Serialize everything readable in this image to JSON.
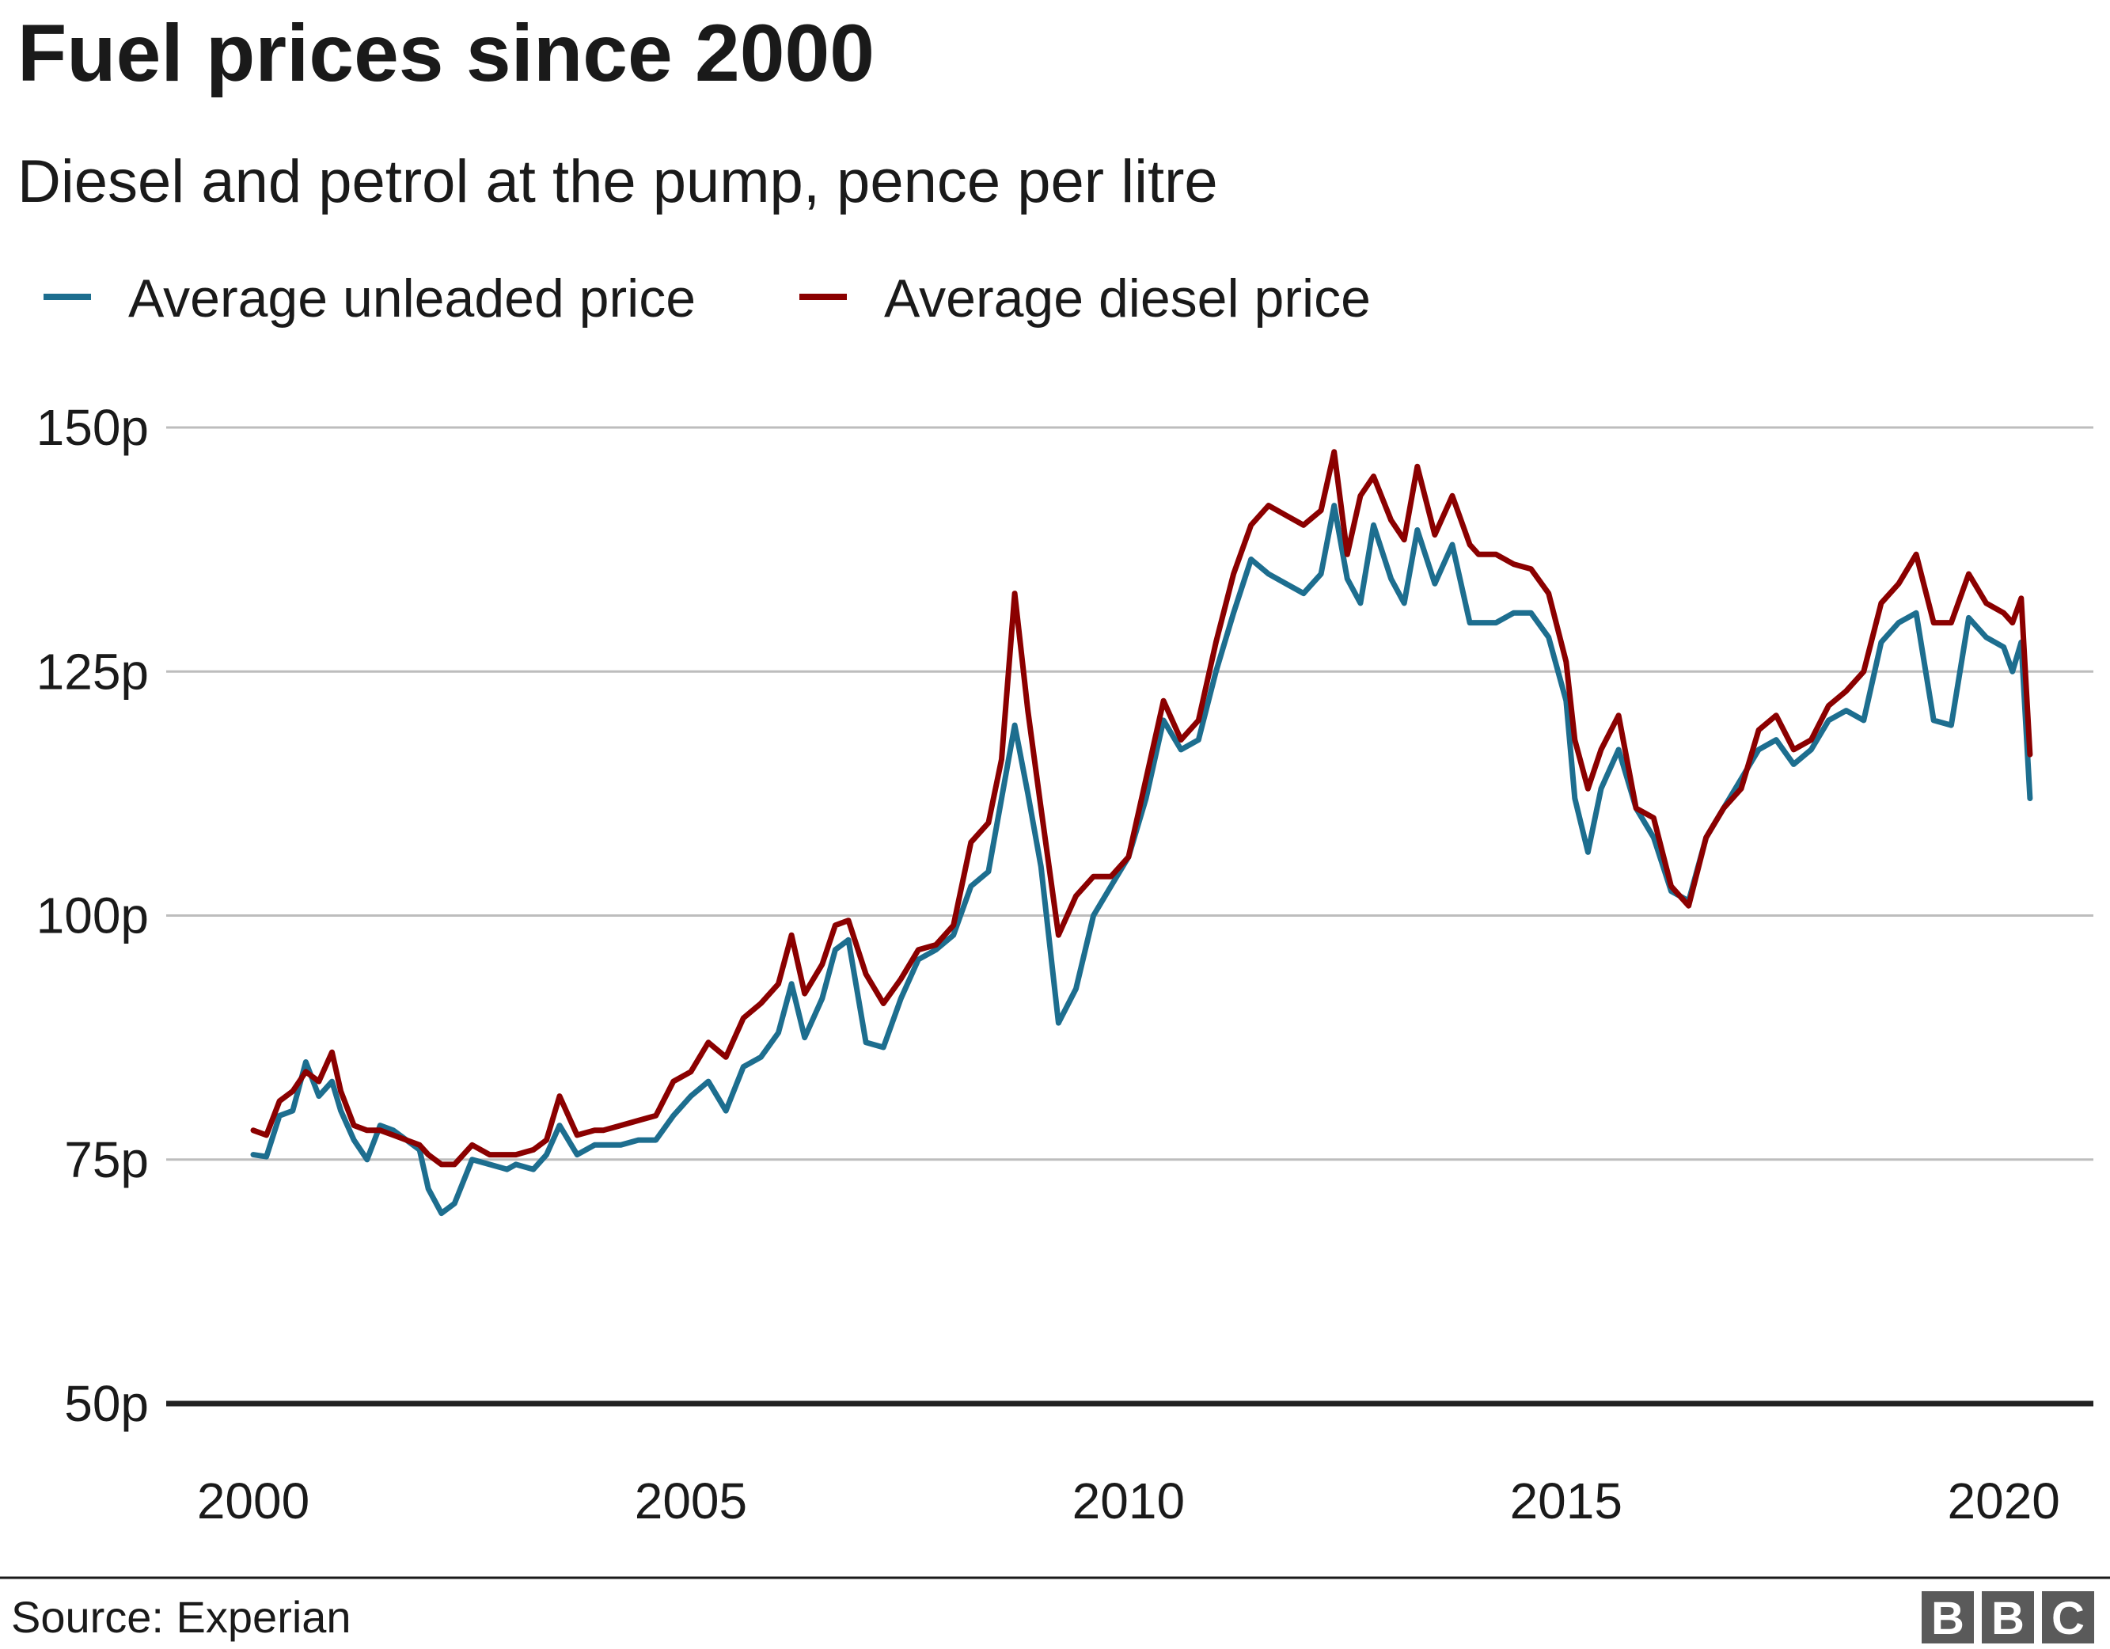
{
  "title": "Fuel prices since 2000",
  "subtitle": "Diesel and petrol at the pump, pence per litre",
  "source": "Source: Experian",
  "logo": {
    "letters": [
      "B",
      "B",
      "C"
    ],
    "color": "#5a5a5a"
  },
  "colors": {
    "unleaded": "#1d6e8f",
    "diesel": "#8b0000",
    "grid": "#bdbdbd",
    "baseline": "#222222"
  },
  "chart_data": {
    "type": "line",
    "title": "Fuel prices since 2000",
    "subtitle": "Diesel and petrol at the pump, pence per litre",
    "xlim": [
      2000,
      2020.5
    ],
    "ylim": [
      50,
      150
    ],
    "x_ticks": [
      2000,
      2005,
      2010,
      2015,
      2020
    ],
    "x_tick_labels": [
      "2000",
      "2005",
      "2010",
      "2015",
      "2020"
    ],
    "y_ticks": [
      50,
      75,
      100,
      125,
      150
    ],
    "y_tick_labels": [
      "50p",
      "75p",
      "100p",
      "125p",
      "150p"
    ],
    "grid": true,
    "legend_position": "top-left",
    "series": [
      {
        "name": "Average unleaded price",
        "color": "#1d6e8f",
        "x": [
          2000.0,
          2000.15,
          2000.3,
          2000.45,
          2000.6,
          2000.75,
          2000.9,
          2001.0,
          2001.15,
          2001.3,
          2001.45,
          2001.6,
          2001.75,
          2001.9,
          2002.0,
          2002.15,
          2002.3,
          2002.5,
          2002.7,
          2002.9,
          2003.0,
          2003.2,
          2003.35,
          2003.5,
          2003.7,
          2003.9,
          2004.0,
          2004.2,
          2004.4,
          2004.6,
          2004.8,
          2005.0,
          2005.2,
          2005.4,
          2005.6,
          2005.8,
          2006.0,
          2006.15,
          2006.3,
          2006.5,
          2006.65,
          2006.8,
          2007.0,
          2007.2,
          2007.4,
          2007.6,
          2007.8,
          2008.0,
          2008.2,
          2008.4,
          2008.55,
          2008.7,
          2008.85,
          2009.0,
          2009.2,
          2009.4,
          2009.6,
          2009.8,
          2010.0,
          2010.2,
          2010.4,
          2010.6,
          2010.8,
          2011.0,
          2011.2,
          2011.4,
          2011.6,
          2011.8,
          2012.0,
          2012.2,
          2012.35,
          2012.5,
          2012.65,
          2012.8,
          2013.0,
          2013.15,
          2013.3,
          2013.5,
          2013.7,
          2013.9,
          2014.0,
          2014.2,
          2014.4,
          2014.6,
          2014.8,
          2015.0,
          2015.1,
          2015.25,
          2015.4,
          2015.6,
          2015.8,
          2016.0,
          2016.2,
          2016.4,
          2016.6,
          2016.8,
          2017.0,
          2017.2,
          2017.4,
          2017.6,
          2017.8,
          2018.0,
          2018.2,
          2018.4,
          2018.6,
          2018.8,
          2019.0,
          2019.2,
          2019.4,
          2019.6,
          2019.8,
          2020.0,
          2020.1,
          2020.2,
          2020.3
        ],
        "values": [
          75.5,
          75.3,
          79.5,
          80.0,
          85.0,
          81.5,
          83.0,
          80.0,
          77.0,
          75.0,
          78.5,
          78.0,
          77.0,
          76.0,
          72.0,
          69.5,
          70.5,
          75.0,
          74.5,
          74.0,
          74.5,
          74.0,
          75.5,
          78.5,
          75.5,
          76.5,
          76.5,
          76.5,
          77.0,
          77.0,
          79.5,
          81.5,
          83.0,
          80.0,
          84.5,
          85.5,
          88.0,
          93.0,
          87.5,
          91.5,
          96.5,
          97.5,
          87.0,
          86.5,
          91.5,
          95.5,
          96.5,
          98.0,
          103.0,
          104.5,
          112.0,
          119.5,
          112.5,
          105.0,
          89.0,
          92.5,
          100.0,
          103.0,
          106.0,
          112.0,
          120.0,
          117.0,
          118.0,
          125.0,
          131.0,
          136.5,
          135.0,
          134.0,
          133.0,
          135.0,
          142.0,
          134.5,
          132.0,
          140.0,
          134.5,
          132.0,
          139.5,
          134.0,
          138.0,
          130.0,
          130.0,
          130.0,
          131.0,
          131.0,
          128.5,
          122.0,
          112.0,
          106.5,
          113.0,
          117.0,
          111.0,
          108.0,
          102.5,
          101.5,
          108.0,
          111.0,
          114.0,
          117.0,
          118.0,
          115.5,
          117.0,
          120.0,
          121.0,
          120.0,
          128.0,
          130.0,
          131.0,
          120.0,
          119.5,
          130.5,
          128.5,
          127.5,
          125.0,
          128.0,
          112.0
        ]
      },
      {
        "name": "Average diesel price",
        "color": "#8b0000",
        "x": [
          2000.0,
          2000.15,
          2000.3,
          2000.45,
          2000.6,
          2000.75,
          2000.9,
          2001.0,
          2001.15,
          2001.3,
          2001.45,
          2001.6,
          2001.75,
          2001.9,
          2002.0,
          2002.15,
          2002.3,
          2002.5,
          2002.7,
          2002.9,
          2003.0,
          2003.2,
          2003.35,
          2003.5,
          2003.7,
          2003.9,
          2004.0,
          2004.2,
          2004.4,
          2004.6,
          2004.8,
          2005.0,
          2005.2,
          2005.4,
          2005.6,
          2005.8,
          2006.0,
          2006.15,
          2006.3,
          2006.5,
          2006.65,
          2006.8,
          2007.0,
          2007.2,
          2007.4,
          2007.6,
          2007.8,
          2008.0,
          2008.2,
          2008.4,
          2008.55,
          2008.7,
          2008.85,
          2009.0,
          2009.2,
          2009.4,
          2009.6,
          2009.8,
          2010.0,
          2010.2,
          2010.4,
          2010.6,
          2010.8,
          2011.0,
          2011.2,
          2011.4,
          2011.6,
          2011.8,
          2012.0,
          2012.2,
          2012.35,
          2012.5,
          2012.65,
          2012.8,
          2013.0,
          2013.15,
          2013.3,
          2013.5,
          2013.7,
          2013.9,
          2014.0,
          2014.2,
          2014.4,
          2014.6,
          2014.8,
          2015.0,
          2015.1,
          2015.25,
          2015.4,
          2015.6,
          2015.8,
          2016.0,
          2016.2,
          2016.4,
          2016.6,
          2016.8,
          2017.0,
          2017.2,
          2017.4,
          2017.6,
          2017.8,
          2018.0,
          2018.2,
          2018.4,
          2018.6,
          2018.8,
          2019.0,
          2019.2,
          2019.4,
          2019.6,
          2019.8,
          2020.0,
          2020.1,
          2020.2,
          2020.3
        ],
        "values": [
          78.0,
          77.5,
          81.0,
          82.0,
          84.0,
          83.0,
          86.0,
          82.0,
          78.5,
          78.0,
          78.0,
          77.5,
          77.0,
          76.5,
          75.5,
          74.5,
          74.5,
          76.5,
          75.5,
          75.5,
          75.5,
          76.0,
          77.0,
          81.5,
          77.5,
          78.0,
          78.0,
          78.5,
          79.0,
          79.5,
          83.0,
          84.0,
          87.0,
          85.5,
          89.5,
          91.0,
          93.0,
          98.0,
          92.0,
          95.0,
          99.0,
          99.5,
          94.0,
          91.0,
          93.5,
          96.5,
          97.0,
          99.0,
          107.5,
          109.5,
          116.0,
          133.0,
          121.0,
          111.0,
          98.0,
          102.0,
          104.0,
          104.0,
          106.0,
          114.0,
          122.0,
          118.0,
          120.0,
          128.0,
          135.0,
          140.0,
          142.0,
          141.0,
          140.0,
          141.5,
          147.5,
          137.0,
          143.0,
          145.0,
          140.5,
          138.5,
          146.0,
          139.0,
          143.0,
          138.0,
          137.0,
          137.0,
          136.0,
          135.5,
          133.0,
          126.0,
          118.0,
          113.0,
          117.0,
          120.5,
          111.0,
          110.0,
          103.0,
          101.0,
          108.0,
          111.0,
          113.0,
          119.0,
          120.5,
          117.0,
          118.0,
          121.5,
          123.0,
          125.0,
          132.0,
          134.0,
          137.0,
          130.0,
          130.0,
          135.0,
          132.0,
          131.0,
          130.0,
          132.5,
          116.5
        ]
      }
    ]
  }
}
